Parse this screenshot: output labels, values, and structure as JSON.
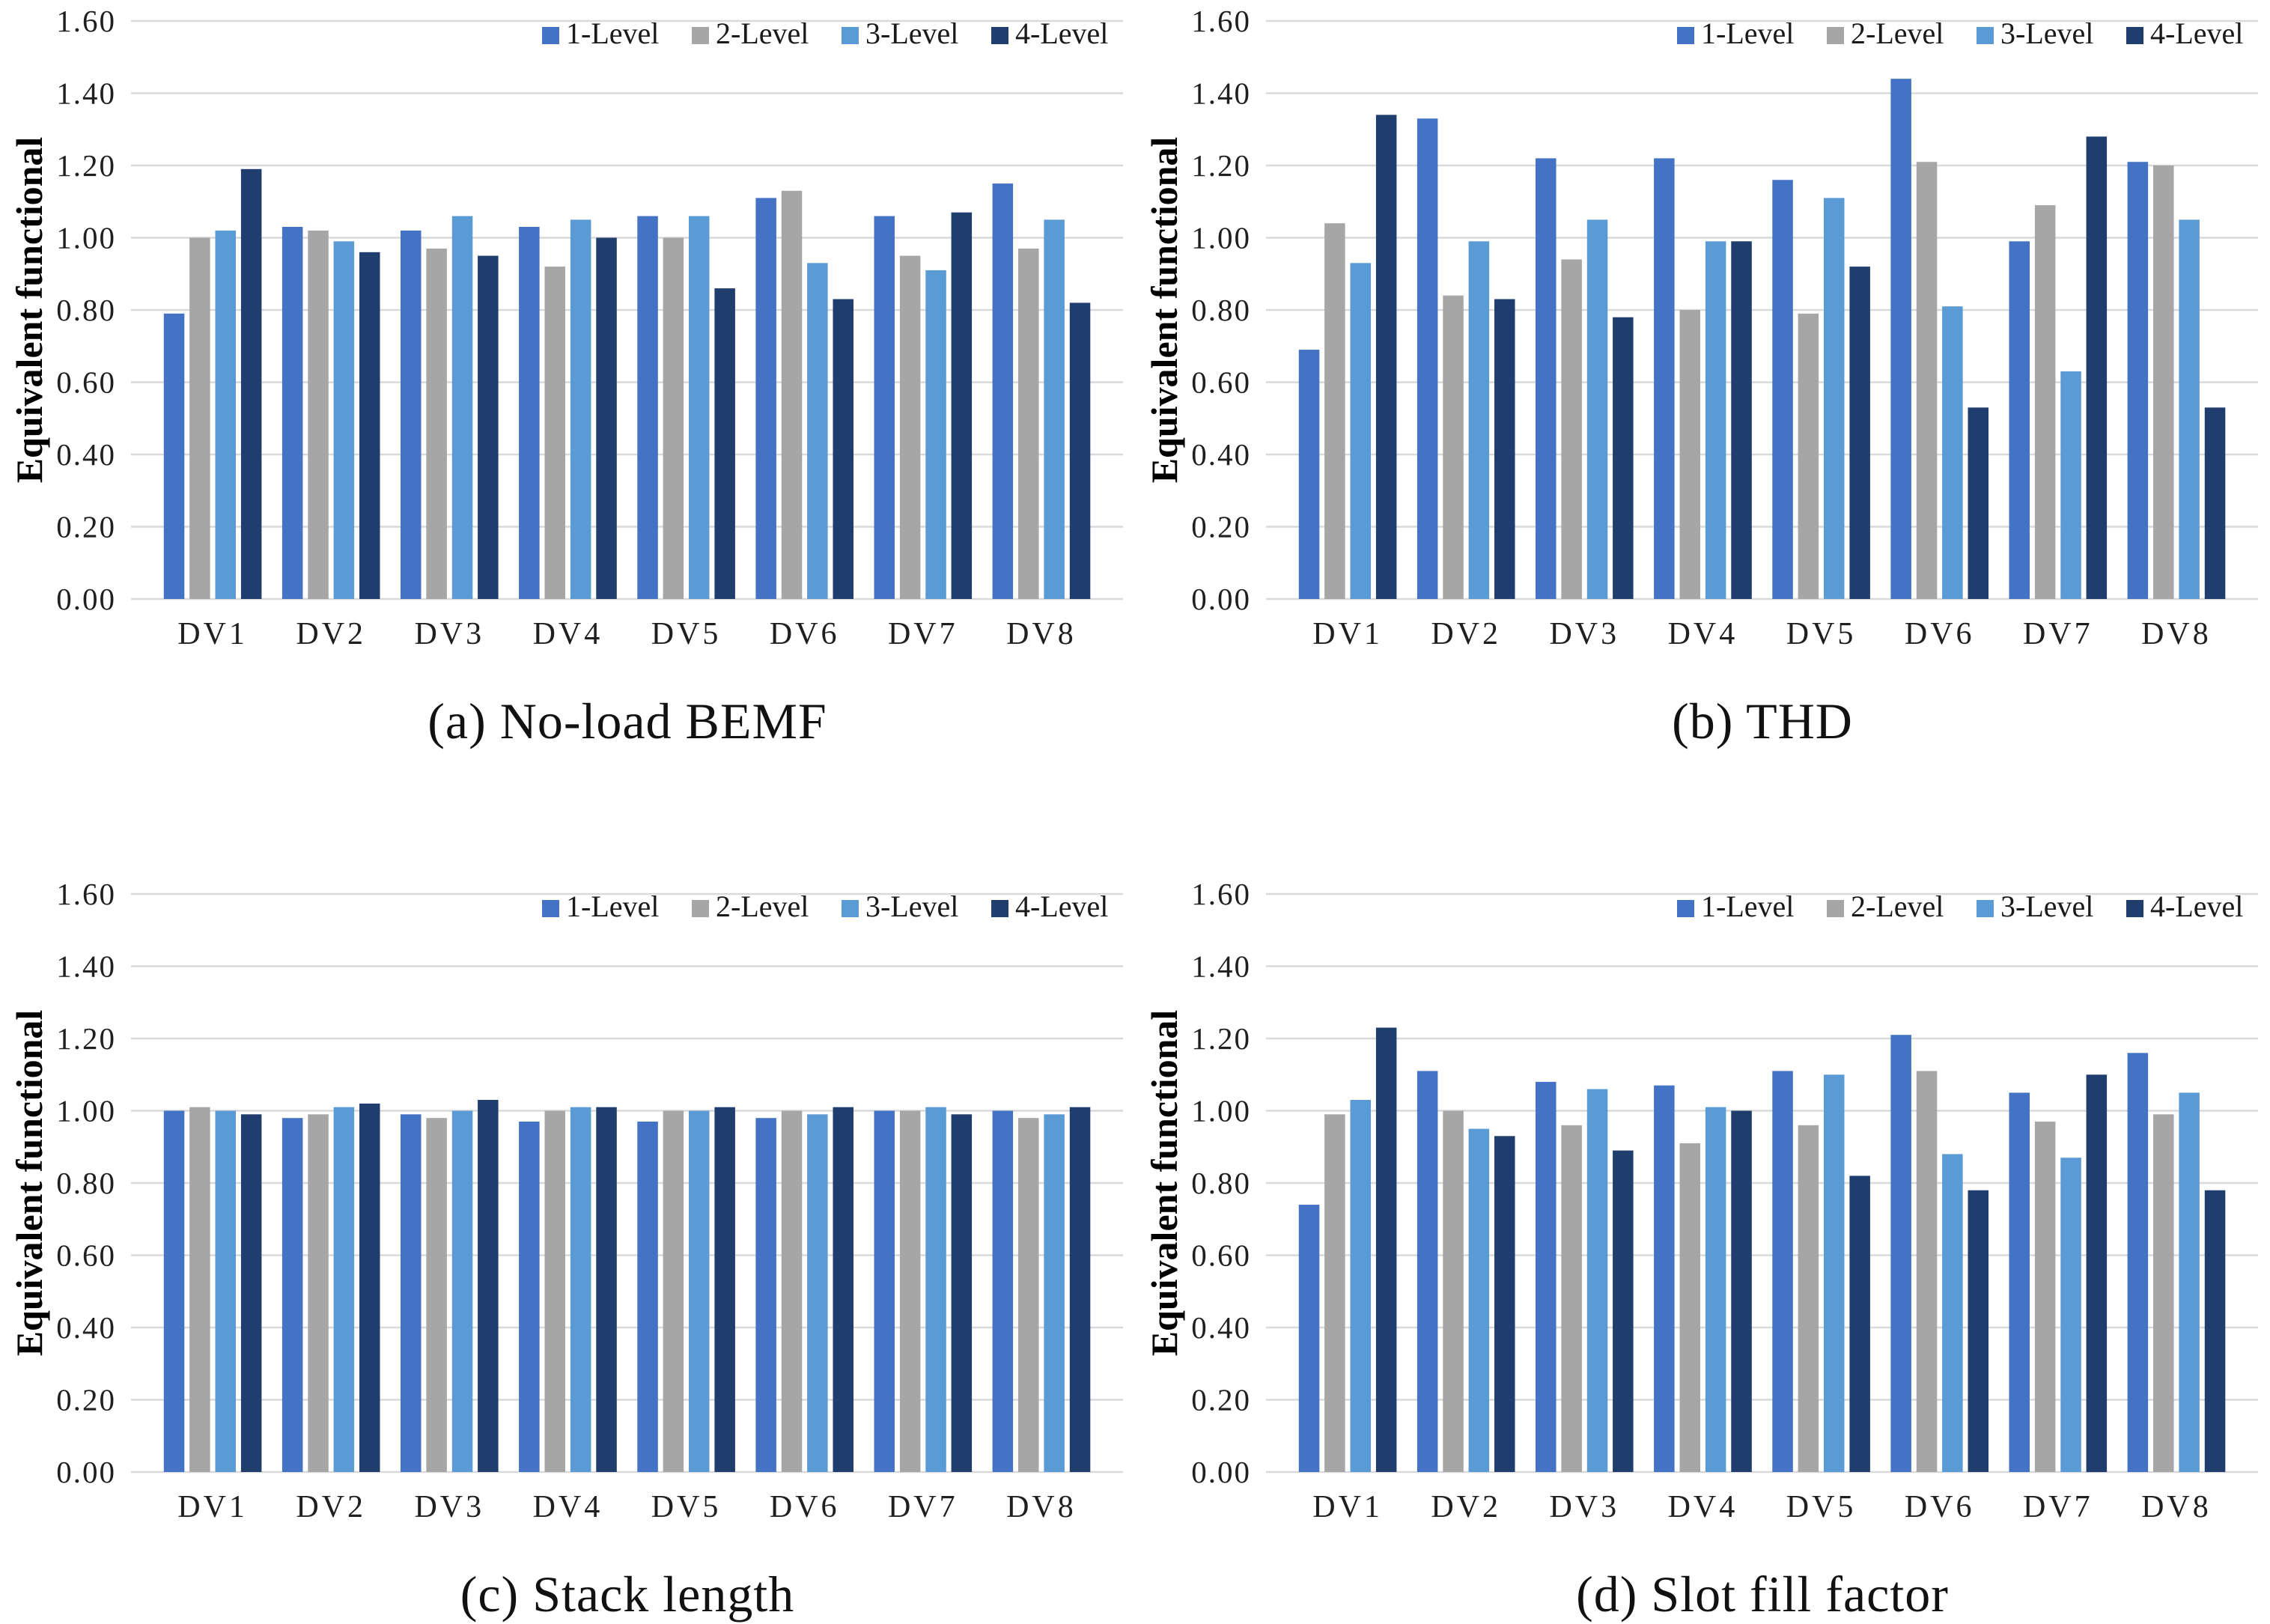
{
  "page": {
    "background": "#ffffff",
    "description": "Four grouped bar charts comparing equivalent functionals of 1-4 level designs across design variables DV1-DV8"
  },
  "colors": {
    "series_1_level": "#4472C4",
    "series_2_level": "#A6A6A6",
    "series_3_level": "#5B9BD5",
    "series_4_level": "#1F3D6D",
    "gridline": "#D9D9D9",
    "text": "#1F1F1F"
  },
  "axis": {
    "y_label": "Equivalent functional",
    "y_min": 0.0,
    "y_max": 1.6,
    "y_tick_step": 0.2,
    "y_tick_labels": [
      "0.00",
      "0.20",
      "0.40",
      "0.60",
      "0.80",
      "1.00",
      "1.20",
      "1.40",
      "1.60"
    ],
    "grid": true
  },
  "legend": {
    "position": "top-right",
    "items": [
      {
        "label": "1-Level",
        "color": "#4472C4"
      },
      {
        "label": "2-Level",
        "color": "#A6A6A6"
      },
      {
        "label": "3-Level",
        "color": "#5B9BD5"
      },
      {
        "label": "4-Level",
        "color": "#1F3D6D"
      }
    ]
  },
  "categories": [
    "DV1",
    "DV2",
    "DV3",
    "DV4",
    "DV5",
    "DV6",
    "DV7",
    "DV8"
  ],
  "chart_data": [
    {
      "type": "bar",
      "title": "(a) No-load BEMF",
      "xlabel": "",
      "ylabel": "Equivalent functional",
      "ylim": [
        0.0,
        1.6
      ],
      "categories": [
        "DV1",
        "DV2",
        "DV3",
        "DV4",
        "DV5",
        "DV6",
        "DV7",
        "DV8"
      ],
      "series": [
        {
          "name": "1-Level",
          "color": "#4472C4",
          "values": [
            0.79,
            1.03,
            1.02,
            1.03,
            1.06,
            1.11,
            1.06,
            1.15
          ]
        },
        {
          "name": "2-Level",
          "color": "#A6A6A6",
          "values": [
            1.0,
            1.02,
            0.97,
            0.92,
            1.0,
            1.13,
            0.95,
            0.97
          ]
        },
        {
          "name": "3-Level",
          "color": "#5B9BD5",
          "values": [
            1.02,
            0.99,
            1.06,
            1.05,
            1.06,
            0.93,
            0.91,
            1.05
          ]
        },
        {
          "name": "4-Level",
          "color": "#1F3D6D",
          "values": [
            1.19,
            0.96,
            0.95,
            1.0,
            0.86,
            0.83,
            1.07,
            0.82
          ]
        }
      ]
    },
    {
      "type": "bar",
      "title": "(b) THD",
      "xlabel": "",
      "ylabel": "Equivalent functional",
      "ylim": [
        0.0,
        1.6
      ],
      "categories": [
        "DV1",
        "DV2",
        "DV3",
        "DV4",
        "DV5",
        "DV6",
        "DV7",
        "DV8"
      ],
      "series": [
        {
          "name": "1-Level",
          "color": "#4472C4",
          "values": [
            0.69,
            1.33,
            1.22,
            1.22,
            1.16,
            1.44,
            0.99,
            1.21
          ]
        },
        {
          "name": "2-Level",
          "color": "#A6A6A6",
          "values": [
            1.04,
            0.84,
            0.94,
            0.8,
            0.79,
            1.21,
            1.09,
            1.2
          ]
        },
        {
          "name": "3-Level",
          "color": "#5B9BD5",
          "values": [
            0.93,
            0.99,
            1.05,
            0.99,
            1.11,
            0.81,
            0.63,
            1.05
          ]
        },
        {
          "name": "4-Level",
          "color": "#1F3D6D",
          "values": [
            1.34,
            0.83,
            0.78,
            0.99,
            0.92,
            0.53,
            1.28,
            0.53
          ]
        }
      ]
    },
    {
      "type": "bar",
      "title": "(c) Stack length",
      "xlabel": "",
      "ylabel": "Equivalent functional",
      "ylim": [
        0.0,
        1.6
      ],
      "categories": [
        "DV1",
        "DV2",
        "DV3",
        "DV4",
        "DV5",
        "DV6",
        "DV7",
        "DV8"
      ],
      "series": [
        {
          "name": "1-Level",
          "color": "#4472C4",
          "values": [
            1.0,
            0.98,
            0.99,
            0.97,
            0.97,
            0.98,
            1.0,
            1.0
          ]
        },
        {
          "name": "2-Level",
          "color": "#A6A6A6",
          "values": [
            1.01,
            0.99,
            0.98,
            1.0,
            1.0,
            1.0,
            1.0,
            0.98
          ]
        },
        {
          "name": "3-Level",
          "color": "#5B9BD5",
          "values": [
            1.0,
            1.01,
            1.0,
            1.01,
            1.0,
            0.99,
            1.01,
            0.99
          ]
        },
        {
          "name": "4-Level",
          "color": "#1F3D6D",
          "values": [
            0.99,
            1.02,
            1.03,
            1.01,
            1.01,
            1.01,
            0.99,
            1.01
          ]
        }
      ]
    },
    {
      "type": "bar",
      "title": "(d) Slot fill factor",
      "xlabel": "",
      "ylabel": "Equivalent functional",
      "ylim": [
        0.0,
        1.6
      ],
      "categories": [
        "DV1",
        "DV2",
        "DV3",
        "DV4",
        "DV5",
        "DV6",
        "DV7",
        "DV8"
      ],
      "series": [
        {
          "name": "1-Level",
          "color": "#4472C4",
          "values": [
            0.74,
            1.11,
            1.08,
            1.07,
            1.11,
            1.21,
            1.05,
            1.16
          ]
        },
        {
          "name": "2-Level",
          "color": "#A6A6A6",
          "values": [
            0.99,
            1.0,
            0.96,
            0.91,
            0.96,
            1.11,
            0.97,
            0.99
          ]
        },
        {
          "name": "3-Level",
          "color": "#5B9BD5",
          "values": [
            1.03,
            0.95,
            1.06,
            1.01,
            1.1,
            0.88,
            0.87,
            1.05
          ]
        },
        {
          "name": "4-Level",
          "color": "#1F3D6D",
          "values": [
            1.23,
            0.93,
            0.89,
            1.0,
            0.82,
            0.78,
            1.1,
            0.78
          ]
        }
      ]
    }
  ]
}
